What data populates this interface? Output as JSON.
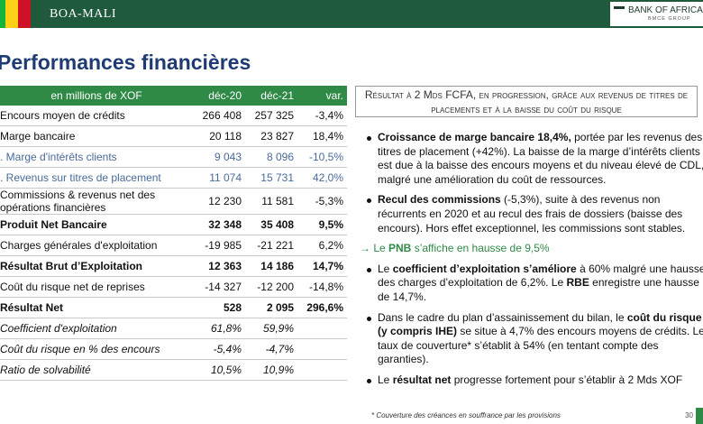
{
  "header": {
    "brand": "BOA-MALI",
    "logo": "BANK OF AFRICA",
    "logo_sub": "BMCE GROUP"
  },
  "title": "Performances financières",
  "table": {
    "columns": [
      "en millions de XOF",
      "déc-20",
      "déc-21",
      "var."
    ],
    "rows": [
      {
        "style": "normal",
        "cells": [
          "Encours moyen de crédits",
          "266 408",
          "257 325",
          "-3,4%"
        ]
      },
      {
        "style": "normal",
        "cells": [
          "Marge bancaire",
          "20 118",
          "23 827",
          "18,4%"
        ]
      },
      {
        "style": "sub",
        "cells": [
          ". Marge d'intérêts clients",
          "9 043",
          "8 096",
          "-10,5%"
        ]
      },
      {
        "style": "sub",
        "cells": [
          ". Revenus sur titres de placement",
          "11 074",
          "15 731",
          "42,0%"
        ]
      },
      {
        "style": "normal",
        "cells": [
          "Commissions & revenus net des opérations financières",
          "12 230",
          "11 581",
          "-5,3%"
        ]
      },
      {
        "style": "bold",
        "cells": [
          "Produit Net Bancaire",
          "32 348",
          "35 408",
          "9,5%"
        ]
      },
      {
        "style": "normal",
        "cells": [
          "Charges générales d'exploitation",
          "-19 985",
          "-21 221",
          "6,2%"
        ]
      },
      {
        "style": "bold",
        "cells": [
          "Résultat Brut d’Exploitation",
          "12 363",
          "14 186",
          "14,7%"
        ]
      },
      {
        "style": "normal",
        "cells": [
          "Coût du risque net de reprises",
          "-14 327",
          "-12 200",
          "-14,8%"
        ]
      },
      {
        "style": "bold",
        "cells": [
          "Résultat Net",
          "528",
          "2 095",
          "296,6%"
        ]
      },
      {
        "style": "italic",
        "cells": [
          "Coefficient d'exploitation",
          "61,8%",
          "59,9%"
        ]
      },
      {
        "style": "italic",
        "cells": [
          "Coût du risque en % des encours",
          "-5,4%",
          "-4,7%"
        ]
      },
      {
        "style": "italic",
        "cells": [
          "Ratio de solvabilité",
          "10,5%",
          "10,9%"
        ]
      }
    ]
  },
  "summary": "Résultat à 2 Mds FCFA, en progression, grâce aux revenus de titres de placements et à la baisse du coût du risque",
  "bullets": [
    {
      "kind": "bullet",
      "segments": [
        {
          "t": "Croissance de marge bancaire 18,4%,",
          "b": true
        },
        {
          "t": " portée par les revenus des titres de placement (+42%). La baisse de la marge d’intérêts clients est due à la baisse des encours moyens et du niveau élevé de CDL, malgré une amélioration du coût de ressources.",
          "b": false
        }
      ]
    },
    {
      "kind": "bullet",
      "segments": [
        {
          "t": "Recul des commissions",
          "b": true
        },
        {
          "t": " (-5,3%), suite à des revenus non récurrents en 2020 et au recul des frais de dossiers (baisse des encours). Hors effet exceptionnel, les commissions sont stables.",
          "b": false
        }
      ]
    },
    {
      "kind": "arrow",
      "segments": [
        {
          "t": "→ Le ",
          "b": false
        },
        {
          "t": "PNB",
          "b": true
        },
        {
          "t": " s’affiche en hausse de 9,5%",
          "b": false
        }
      ]
    },
    {
      "kind": "bullet",
      "segments": [
        {
          "t": "Le ",
          "b": false
        },
        {
          "t": "coefficient d’exploitation s’améliore",
          "b": true
        },
        {
          "t": " à 60% malgré une hausse des charges d’exploitation de 6,2%. Le ",
          "b": false
        },
        {
          "t": "RBE",
          "b": true
        },
        {
          "t": " enregistre une hausse de 14,7%.",
          "b": false
        }
      ]
    },
    {
      "kind": "bullet",
      "segments": [
        {
          "t": "Dans le cadre du plan d’assainissement du bilan, le ",
          "b": false
        },
        {
          "t": "coût du risque (y compris IHE)",
          "b": true
        },
        {
          "t": " se situe à 4,7% des encours moyens de crédits. Le taux de couverture* s’établit à 54% (en tentant compte des garanties).",
          "b": false
        }
      ]
    },
    {
      "kind": "bullet",
      "segments": [
        {
          "t": "Le ",
          "b": false
        },
        {
          "t": "résultat net",
          "b": true
        },
        {
          "t": " progresse fortement pour s’établir à 2 Mds XOF",
          "b": false
        }
      ]
    }
  ],
  "footnote": "* Couverture des créances en souffrance par les provisions",
  "page_number": "30"
}
